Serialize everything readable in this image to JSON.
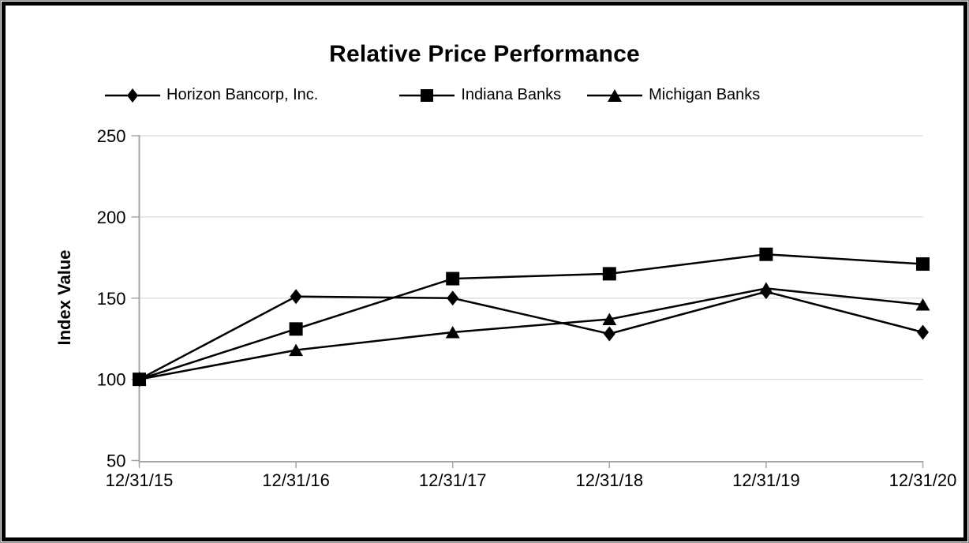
{
  "title": "Relative Price Performance",
  "y_axis_title": "Index Value",
  "legend": [
    {
      "name": "Horizon Bancorp, Inc.",
      "marker": "diamond"
    },
    {
      "name": "Indiana Banks",
      "marker": "square"
    },
    {
      "name": "Michigan Banks",
      "marker": "triangle"
    }
  ],
  "chart_data": {
    "type": "line",
    "title": "Relative Price Performance",
    "xlabel": "",
    "ylabel": "Index Value",
    "categories": [
      "12/31/15",
      "12/31/16",
      "12/31/17",
      "12/31/18",
      "12/31/19",
      "12/31/20"
    ],
    "series": [
      {
        "name": "Horizon Bancorp, Inc.",
        "marker": "diamond",
        "values": [
          100,
          151,
          150,
          128,
          154,
          129
        ]
      },
      {
        "name": "Indiana Banks",
        "marker": "square",
        "values": [
          100,
          131,
          162,
          165,
          177,
          171
        ]
      },
      {
        "name": "Michigan Banks",
        "marker": "triangle",
        "values": [
          100,
          118,
          129,
          137,
          156,
          146
        ]
      }
    ],
    "ylim": [
      50,
      250
    ],
    "y_ticks": [
      50,
      100,
      150,
      200,
      250
    ],
    "grid": true,
    "legend_position": "top",
    "colors": {
      "series": "#000000",
      "gridline": "#d9d9d9",
      "axis": "#a6a6a6",
      "text": "#000000"
    }
  }
}
